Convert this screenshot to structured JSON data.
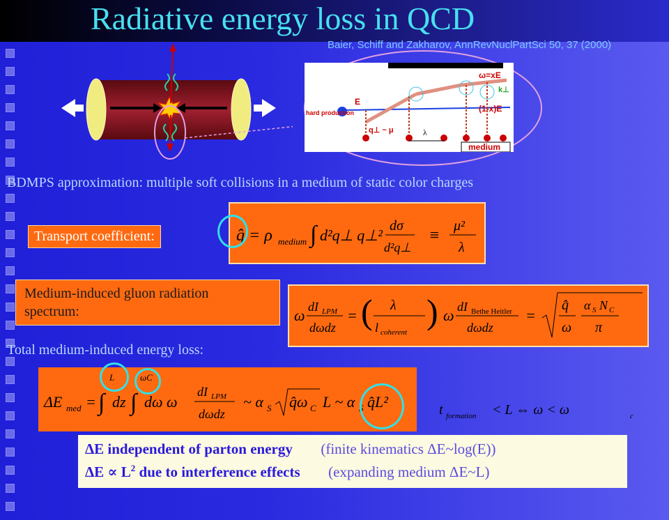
{
  "title": "Radiative energy loss in QCD",
  "reference": "Baier, Schiff and Zakharov, AnnRevNuclPartSci 50, 37 (2000)",
  "bdmps_line": "BDMPS approximation: multiple soft collisions in a medium of static color charges",
  "transport_label": "Transport coefficient:",
  "spectrum_label_line1": "Medium-induced gluon radiation",
  "spectrum_label_line2": "spectrum:",
  "total_loss_label": "Total medium-induced energy loss:",
  "diagram_labels": {
    "omega_xe": "ω=xE",
    "k_perp": "k⊥",
    "e_label": "E",
    "one_minus_x_e": "(1-x)E",
    "hard_production": "hard production",
    "q_perp_mu": "q⊥ ~ μ",
    "lambda": "λ",
    "medium": "medium"
  },
  "note": {
    "row1_bold": "ΔE independent of parton energy",
    "row1_plain": "(finite kinematics ΔE~log(E))",
    "row2_bold_prefix": "ΔE ∝ L",
    "row2_bold_sup": "2",
    "row2_bold_suffix": " due to interference effects",
    "row2_plain": "(expanding medium ΔE~L)"
  },
  "colors": {
    "title": "#48e0f0",
    "box": "#ff6a10",
    "circle": "#30e0e8"
  }
}
